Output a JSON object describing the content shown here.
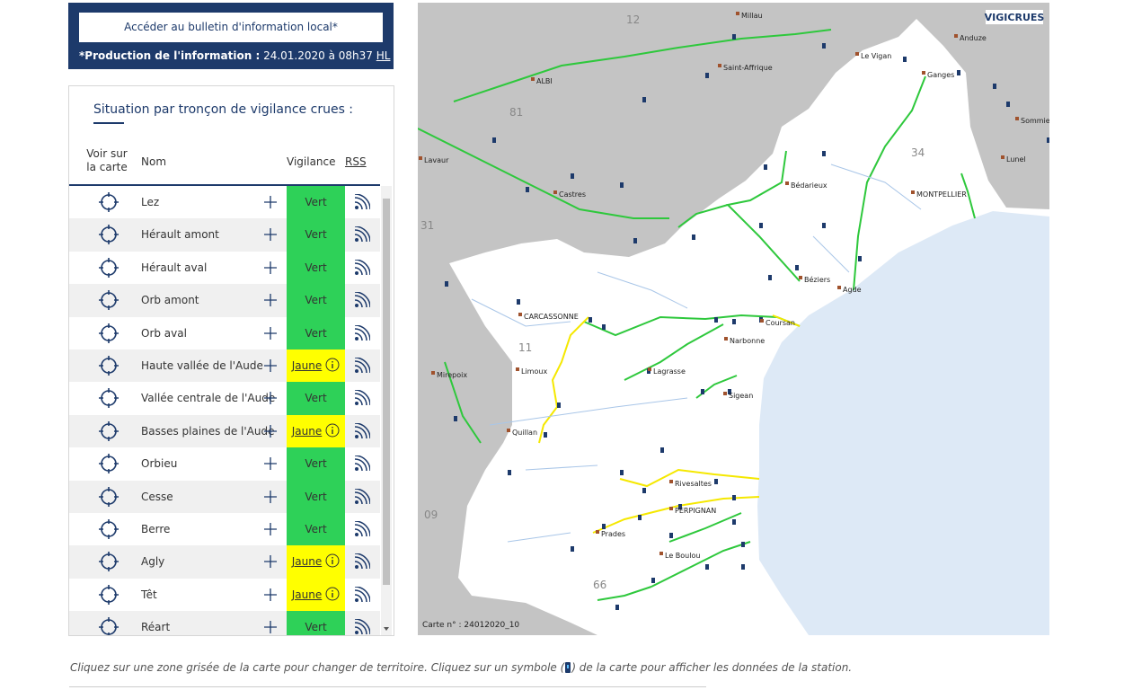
{
  "header": {
    "bulletin_button": "Accéder au bulletin d'information local*",
    "production_label": "*Production de l'information :",
    "production_date": "24.01.2020 à 08h37",
    "production_tz": "HL"
  },
  "table": {
    "title": "Situation par tronçon de vigilance crues :",
    "columns": [
      "Voir sur la carte",
      "Nom",
      "Vigilance",
      "RSS"
    ],
    "rows": [
      {
        "name": "Lez",
        "vigilance": "Vert"
      },
      {
        "name": "Hérault amont",
        "vigilance": "Vert"
      },
      {
        "name": "Hérault aval",
        "vigilance": "Vert"
      },
      {
        "name": "Orb amont",
        "vigilance": "Vert"
      },
      {
        "name": "Orb aval",
        "vigilance": "Vert"
      },
      {
        "name": "Haute vallée de l'Aude",
        "vigilance": "Jaune"
      },
      {
        "name": "Vallée centrale de l'Aude",
        "vigilance": "Vert"
      },
      {
        "name": "Basses plaines de l'Aude",
        "vigilance": "Jaune"
      },
      {
        "name": "Orbieu",
        "vigilance": "Vert"
      },
      {
        "name": "Cesse",
        "vigilance": "Vert"
      },
      {
        "name": "Berre",
        "vigilance": "Vert"
      },
      {
        "name": "Agly",
        "vigilance": "Jaune"
      },
      {
        "name": "Têt",
        "vigilance": "Jaune"
      },
      {
        "name": "Réart",
        "vigilance": "Vert"
      }
    ]
  },
  "map": {
    "logo": "VIGICRUES",
    "labels": [
      "Millau",
      "Anduze",
      "Le Vigan",
      "Ganges",
      "Saint-Affrique",
      "ALBI",
      "Sommie",
      "Lunel",
      "Bédarieux",
      "Castres",
      "Lavaur",
      "MONTPELLIER",
      "Béziers",
      "Agde",
      "CARCASSONNE",
      "Coursan",
      "Narbonne",
      "Limoux",
      "Lagrasse",
      "Sigean",
      "Mirepoix",
      "Quillan",
      "Rivesaltes",
      "PERPIGNAN",
      "Prades",
      "Le Boulou"
    ],
    "departments": [
      "12",
      "81",
      "34",
      "31",
      "11",
      "09",
      "66"
    ],
    "map_number": "Carte n° : 24012020_10"
  },
  "footer": {
    "before_icon": "Cliquez sur une zone grisée de la carte pour changer de territoire. Cliquez sur un symbole (",
    "after_icon": ") de la carte pour afficher les données de la station."
  }
}
